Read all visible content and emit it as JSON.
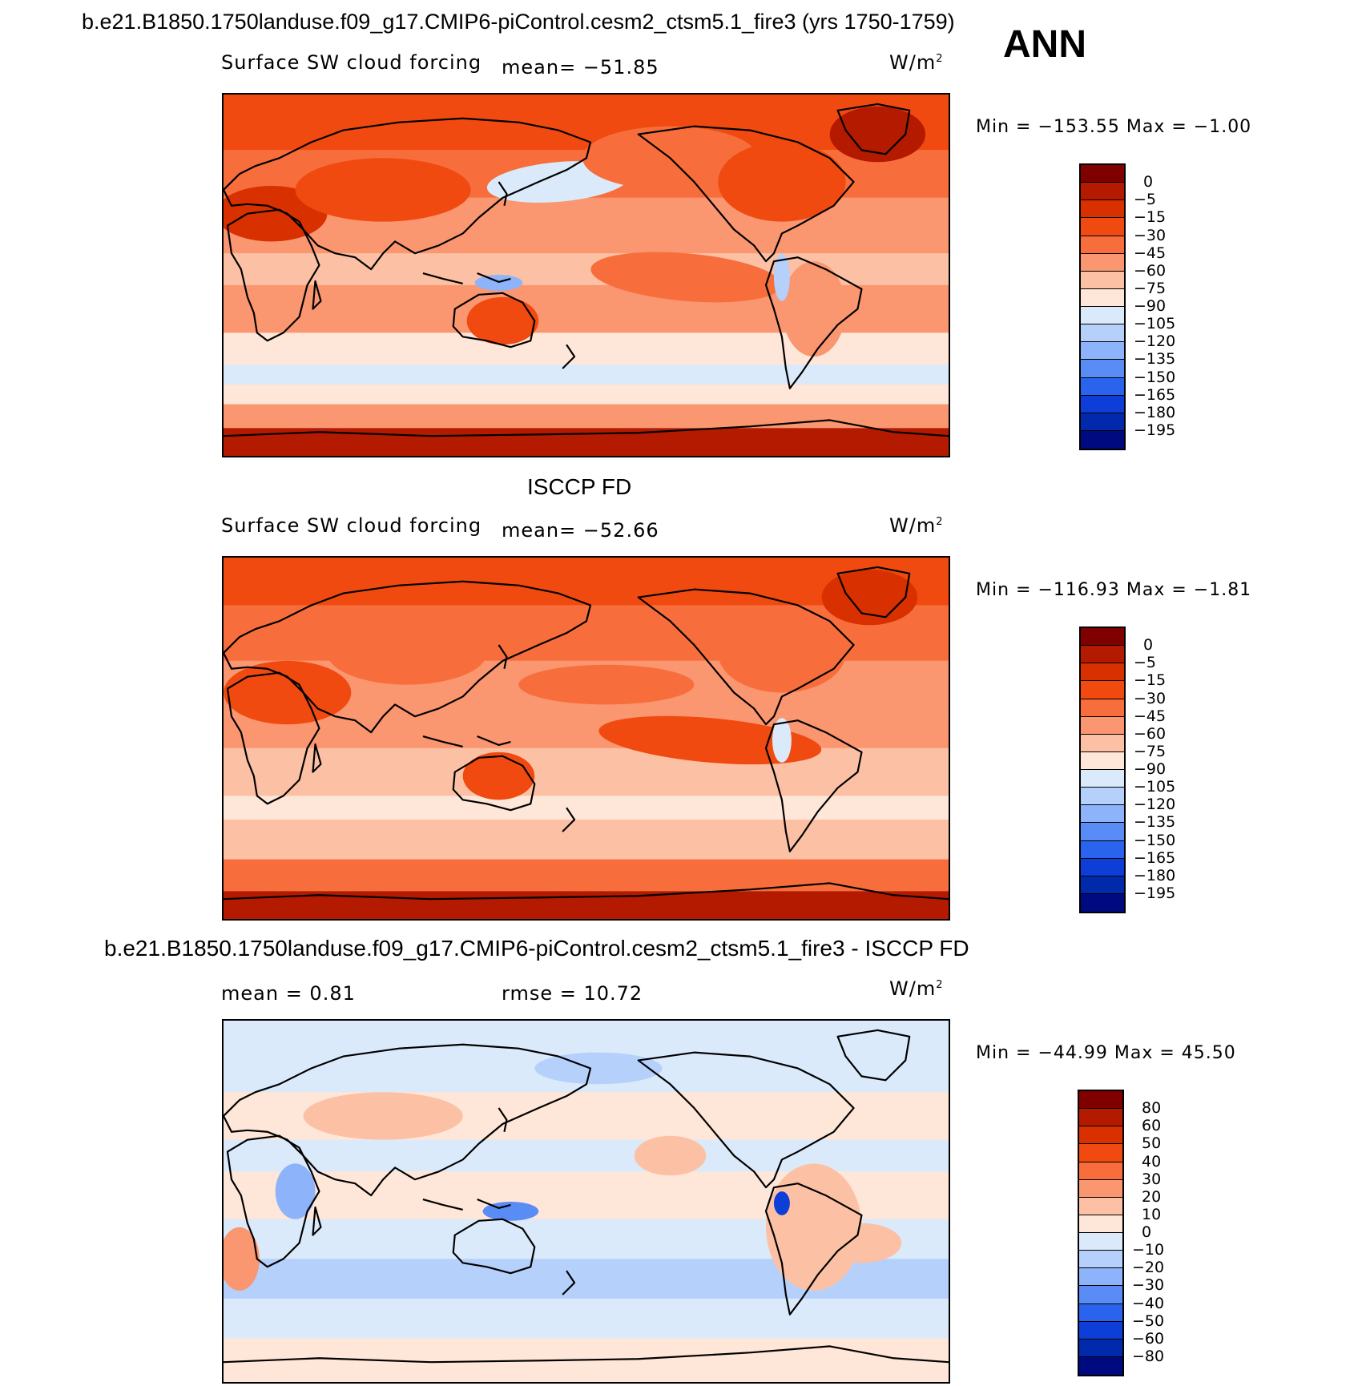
{
  "header": {
    "title": "b.e21.B1850.1750landuse.f09_g17.CMIP6-piControl.cesm2_ctsm5.1_fire3 (yrs 1750-1759)",
    "season": "ANN"
  },
  "panels": [
    {
      "id": "model",
      "heading": "",
      "variable": "Surface SW cloud forcing",
      "stat1": "mean= −51.85",
      "stat2": "",
      "units": "W/m",
      "units_exp": "2",
      "minmax": "Min = −153.55  Max =  −1.00",
      "colorbar": {
        "labels": [
          "0",
          "−5",
          "−15",
          "−30",
          "−45",
          "−60",
          "−75",
          "−90",
          "−105",
          "−120",
          "−135",
          "−150",
          "−165",
          "−180",
          "−195"
        ],
        "colors": [
          "#800000",
          "#b31a00",
          "#d93000",
          "#f04a10",
          "#f76e3c",
          "#fa9670",
          "#fcc1a4",
          "#fee6d8",
          "#dbeafa",
          "#b5d0fb",
          "#8db3fa",
          "#5a8cf5",
          "#2a64ee",
          "#0d3ed8",
          "#002aab",
          "#000a80"
        ]
      }
    },
    {
      "id": "obs",
      "heading": "ISCCP FD",
      "variable": "Surface SW cloud forcing",
      "stat1": "mean= −52.66",
      "stat2": "",
      "units": "W/m",
      "units_exp": "2",
      "minmax": "Min = −116.93  Max =  −1.81",
      "colorbar": {
        "labels": [
          "0",
          "−5",
          "−15",
          "−30",
          "−45",
          "−60",
          "−75",
          "−90",
          "−105",
          "−120",
          "−135",
          "−150",
          "−165",
          "−180",
          "−195"
        ],
        "colors": [
          "#800000",
          "#b31a00",
          "#d93000",
          "#f04a10",
          "#f76e3c",
          "#fa9670",
          "#fcc1a4",
          "#fee6d8",
          "#dbeafa",
          "#b5d0fb",
          "#8db3fa",
          "#5a8cf5",
          "#2a64ee",
          "#0d3ed8",
          "#002aab",
          "#000a80"
        ]
      }
    },
    {
      "id": "diff",
      "heading": "b.e21.B1850.1750landuse.f09_g17.CMIP6-piControl.cesm2_ctsm5.1_fire3 - ISCCP FD",
      "variable": "",
      "stat1": "mean =    0.81",
      "stat2": "rmse =   10.72",
      "units": "W/m",
      "units_exp": "2",
      "minmax": "Min = −44.99  Max =  45.50",
      "colorbar": {
        "labels": [
          "80",
          "60",
          "50",
          "40",
          "30",
          "20",
          "10",
          "0",
          "−10",
          "−20",
          "−30",
          "−40",
          "−50",
          "−60",
          "−80"
        ],
        "colors": [
          "#800000",
          "#b31a00",
          "#d93000",
          "#f04a10",
          "#f76e3c",
          "#fa9670",
          "#fcc1a4",
          "#fee6d8",
          "#dbeafa",
          "#b5d0fb",
          "#8db3fa",
          "#5a8cf5",
          "#2a64ee",
          "#0d3ed8",
          "#002aab",
          "#000a80"
        ]
      }
    }
  ]
}
